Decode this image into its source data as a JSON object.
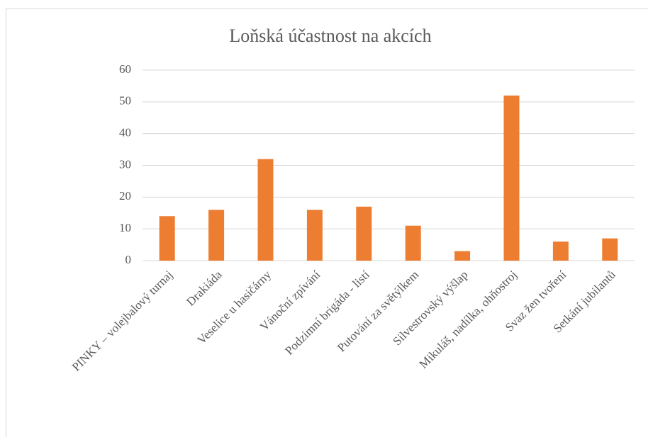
{
  "chart_data": {
    "type": "bar",
    "title": "Loňská účastnost na akcích",
    "categories": [
      "PINKY – volejbalový turnaj",
      "Drakiáda",
      "Veselice u hasičárny",
      "Vánoční zpívání",
      "Podzimní brigáda - listí",
      "Putování za světýlkem",
      "Silvestrovský výšlap",
      "Mikuláš, nadílka, ohňostroj",
      "Svaz žen tvoření",
      "Setkání jubilantů"
    ],
    "values": [
      14,
      16,
      32,
      16,
      17,
      11,
      3,
      52,
      6,
      7
    ],
    "color": "#ed7d31",
    "ylim": [
      0,
      60
    ],
    "yticks": [
      0,
      10,
      20,
      30,
      40,
      50,
      60
    ],
    "grid": true
  }
}
